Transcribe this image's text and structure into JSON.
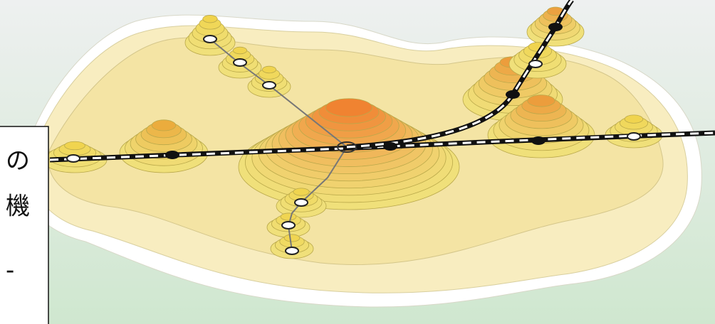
{
  "text_box": {
    "lines": [
      "の",
      "機",
      "-"
    ]
  }
}
